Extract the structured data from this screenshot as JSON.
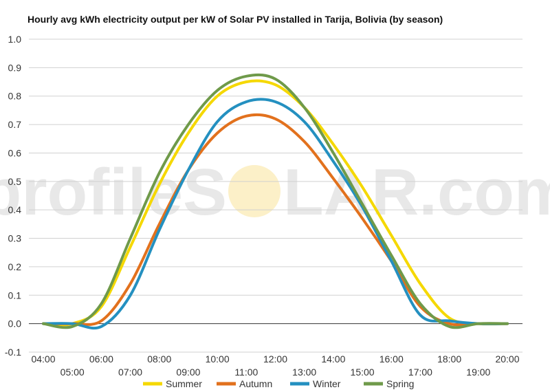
{
  "chart_data": {
    "type": "line",
    "title": "Hourly avg kWh electricity output per kW of Solar PV installed in Tarija, Bolivia (by season)",
    "watermark": {
      "left": "profileS",
      "right": "LAR.com"
    },
    "x": [
      "04:00",
      "05:00",
      "06:00",
      "07:00",
      "08:00",
      "09:00",
      "10:00",
      "11:00",
      "12:00",
      "13:00",
      "14:00",
      "15:00",
      "16:00",
      "17:00",
      "18:00",
      "19:00",
      "20:00"
    ],
    "yticks": [
      "-0.1",
      "0.0",
      "0.1",
      "0.2",
      "0.3",
      "0.4",
      "0.5",
      "0.6",
      "0.7",
      "0.8",
      "0.9",
      "1.0"
    ],
    "ylim": [
      -0.1,
      1.0
    ],
    "grid": true,
    "legend_position": "bottom",
    "colors": {
      "Summer": "#f5d800",
      "Autumn": "#e2711d",
      "Winter": "#2490c0",
      "Spring": "#6f9a4a",
      "sun": "#fbe9b0"
    },
    "series": [
      {
        "name": "Summer",
        "values": [
          0.0,
          0.0,
          0.06,
          0.27,
          0.49,
          0.67,
          0.8,
          0.85,
          0.84,
          0.76,
          0.63,
          0.48,
          0.31,
          0.14,
          0.02,
          0.0,
          0.0
        ]
      },
      {
        "name": "Autumn",
        "values": [
          0.0,
          0.0,
          0.01,
          0.14,
          0.35,
          0.54,
          0.67,
          0.73,
          0.72,
          0.64,
          0.51,
          0.37,
          0.22,
          0.06,
          0.0,
          0.0,
          0.0
        ]
      },
      {
        "name": "Winter",
        "values": [
          0.0,
          0.0,
          -0.01,
          0.1,
          0.33,
          0.54,
          0.71,
          0.78,
          0.78,
          0.71,
          0.57,
          0.41,
          0.22,
          0.03,
          0.01,
          0.0,
          0.0
        ]
      },
      {
        "name": "Spring",
        "values": [
          0.0,
          -0.01,
          0.07,
          0.3,
          0.53,
          0.7,
          0.82,
          0.87,
          0.86,
          0.76,
          0.6,
          0.42,
          0.24,
          0.07,
          -0.01,
          0.0,
          0.0
        ]
      }
    ]
  }
}
